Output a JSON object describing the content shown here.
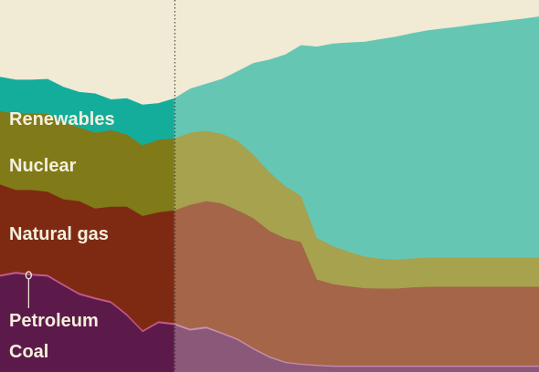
{
  "chart_data": {
    "type": "area",
    "stacked": true,
    "title": "",
    "xlabel": "",
    "ylabel": "",
    "ylim": [
      0,
      100
    ],
    "x": [
      0,
      1,
      2,
      3,
      4,
      5,
      6,
      7,
      8,
      9,
      10,
      11,
      12,
      13,
      14,
      15,
      16,
      17,
      18,
      19,
      20,
      21,
      22,
      23,
      24,
      25,
      26,
      27,
      28,
      29,
      30,
      31,
      32,
      33,
      34
    ],
    "divider_x": 11,
    "background_color": "#f1ead4",
    "series": [
      {
        "name": "Coal",
        "color_historical": "#5c1a4a",
        "color_projected": "#8a5878",
        "values": [
          25.7,
          26.5,
          26.0,
          25.7,
          23.2,
          20.8,
          19.6,
          18.6,
          15.2,
          10.8,
          13.2,
          12.7,
          11.2,
          11.8,
          10.3,
          8.6,
          6.1,
          3.9,
          2.5,
          2.0,
          1.7,
          1.5,
          1.5,
          1.5,
          1.5,
          1.5,
          1.5,
          1.5,
          1.5,
          1.5,
          1.5,
          1.5,
          1.5,
          1.5,
          1.5
        ]
      },
      {
        "name": "Petroleum",
        "color_historical": "#c45a8c",
        "color_projected": "#c98fae",
        "values": [
          0.5,
          0.5,
          0.5,
          0.5,
          0.5,
          0.5,
          0.5,
          0.5,
          0.5,
          0.5,
          0.5,
          0.5,
          0.5,
          0.5,
          0.4,
          0.4,
          0.4,
          0.4,
          0.3,
          0.3,
          0.3,
          0.3,
          0.3,
          0.3,
          0.3,
          0.3,
          0.3,
          0.3,
          0.3,
          0.3,
          0.3,
          0.3,
          0.3,
          0.3,
          0.3
        ]
      },
      {
        "name": "Natural gas",
        "color_historical": "#7e2a12",
        "color_projected": "#a56548",
        "values": [
          24.3,
          22.0,
          22.5,
          22.3,
          22.8,
          24.7,
          23.9,
          25.4,
          28.8,
          30.7,
          29.3,
          30.3,
          33.3,
          33.7,
          34.7,
          34.5,
          34.9,
          33.7,
          33.2,
          32.7,
          22.9,
          21.9,
          21.3,
          20.8,
          20.7,
          20.7,
          21.0,
          21.2,
          21.2,
          21.2,
          21.2,
          21.2,
          21.2,
          21.2,
          21.2
        ]
      },
      {
        "name": "Nuclear",
        "color_historical": "#807a18",
        "color_projected": "#a6a24e",
        "values": [
          19.7,
          20.5,
          20.6,
          21.0,
          20.6,
          19.8,
          20.4,
          20.6,
          19.4,
          19.0,
          19.5,
          19.4,
          19.4,
          18.9,
          18.7,
          18.7,
          17.0,
          15.8,
          14.0,
          12.4,
          11.2,
          10.2,
          9.3,
          8.5,
          8.0,
          7.8,
          7.8,
          7.8,
          7.8,
          7.8,
          7.8,
          7.8,
          7.8,
          7.8,
          7.8
        ]
      },
      {
        "name": "Renewables",
        "color_historical": "#14ad9c",
        "color_projected": "#66c6b4",
        "values": [
          9.1,
          9.0,
          8.9,
          9.2,
          9.5,
          9.4,
          10.4,
          8.1,
          9.6,
          10.8,
          9.7,
          10.6,
          11.7,
          12.5,
          14.6,
          18.6,
          24.6,
          30.1,
          35.3,
          40.4,
          51.3,
          54.3,
          56.1,
          57.6,
          58.9,
          59.8,
          60.4,
          61.0,
          61.5,
          62.0,
          62.6,
          63.1,
          63.6,
          64.1,
          64.7
        ]
      }
    ],
    "annotations": [
      {
        "type": "vertical-dotted-line",
        "x": 11
      },
      {
        "type": "marker",
        "series": "Petroleum",
        "x": 1
      }
    ]
  }
}
